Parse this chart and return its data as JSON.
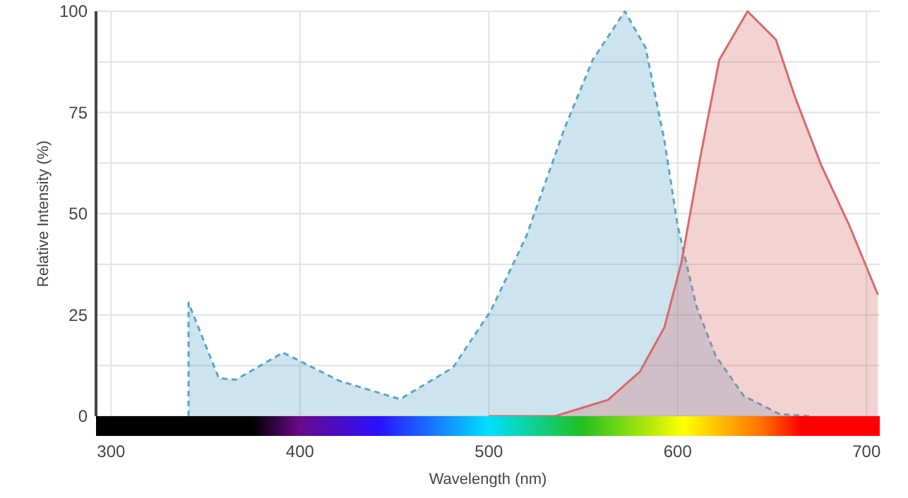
{
  "chart_data": {
    "type": "area",
    "xlabel": "Wavelength (nm)",
    "ylabel": "Relative Intensity (%)",
    "xlim": [
      292,
      707
    ],
    "xticks": [
      300,
      400,
      500,
      600,
      700
    ],
    "ylim": [
      0,
      100
    ],
    "yticks": [
      0,
      {
        "value": 12.5,
        "label": null
      },
      25,
      {
        "value": 37.5,
        "label": null
      },
      50,
      {
        "value": 62.5,
        "label": null
      },
      75,
      {
        "value": 87.5,
        "label": null
      },
      100
    ],
    "grid": true,
    "series": [
      {
        "color": "#5aa6c8",
        "line_style": "dashed",
        "x": [
          341,
          341,
          357,
          366,
          391,
          421,
          453,
          481,
          501,
          520,
          540,
          555,
          572,
          583,
          593,
          600,
          610,
          620,
          635,
          654,
          670
        ],
        "values": [
          0,
          28,
          9.4,
          9,
          15.7,
          8.7,
          4.2,
          12,
          26,
          44.6,
          71,
          88,
          100,
          91,
          68,
          47,
          27,
          15,
          5,
          0.5,
          0
        ]
      },
      {
        "color": "#d86a6a",
        "line_style": "solid",
        "x": [
          500,
          535,
          563,
          580,
          593,
          602,
          612,
          622,
          637,
          652,
          662,
          676,
          691,
          706
        ],
        "values": [
          0,
          0,
          4,
          11,
          22,
          38,
          64,
          88,
          100,
          93,
          79,
          62,
          47,
          30
        ]
      }
    ]
  }
}
